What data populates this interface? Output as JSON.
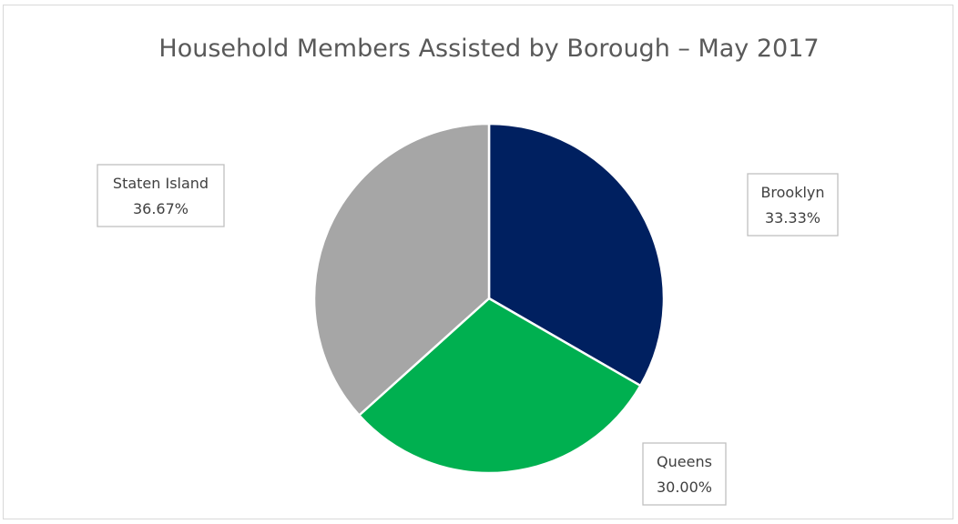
{
  "chart_data": {
    "type": "pie",
    "title": "Household Members Assisted by Borough – May 2017",
    "slices": [
      {
        "label": "Brooklyn",
        "value": 33.33,
        "value_label": "33.33%",
        "color": "#002060",
        "label_position": "right"
      },
      {
        "label": "Queens",
        "value": 30.0,
        "value_label": "30.00%",
        "color": "#00B050",
        "label_position": "bottom-right"
      },
      {
        "label": "Staten Island",
        "value": 36.67,
        "value_label": "36.67%",
        "color": "#A6A6A6",
        "label_position": "left"
      }
    ],
    "start": "12 o'clock",
    "direction": "clockwise",
    "legend": "none"
  }
}
